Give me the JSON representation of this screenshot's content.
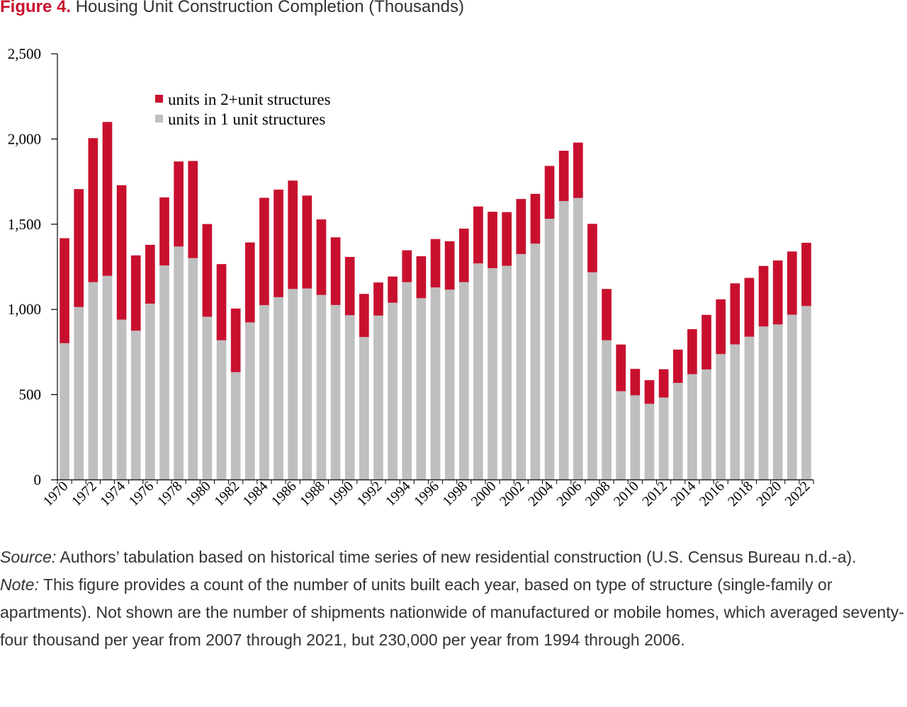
{
  "figure": {
    "label": "Figure 4.",
    "title": "Housing Unit Construction Completion (Thousands)"
  },
  "chart_data": {
    "type": "bar",
    "stacked": true,
    "categories": [
      "1970",
      "1971",
      "1972",
      "1973",
      "1974",
      "1975",
      "1976",
      "1977",
      "1978",
      "1979",
      "1980",
      "1981",
      "1982",
      "1983",
      "1984",
      "1985",
      "1986",
      "1987",
      "1988",
      "1989",
      "1990",
      "1991",
      "1992",
      "1993",
      "1994",
      "1995",
      "1996",
      "1997",
      "1998",
      "1999",
      "2000",
      "2001",
      "2002",
      "2003",
      "2004",
      "2005",
      "2006",
      "2007",
      "2008",
      "2009",
      "2010",
      "2011",
      "2012",
      "2013",
      "2014",
      "2015",
      "2016",
      "2017",
      "2018",
      "2019",
      "2020",
      "2021",
      "2022"
    ],
    "x_tick_labels": [
      "1970",
      "1972",
      "1974",
      "1976",
      "1978",
      "1980",
      "1982",
      "1984",
      "1986",
      "1988",
      "1990",
      "1992",
      "1994",
      "1996",
      "1998",
      "2000",
      "2002",
      "2004",
      "2006",
      "2008",
      "2010",
      "2012",
      "2014",
      "2016",
      "2018",
      "2020",
      "2022"
    ],
    "series": [
      {
        "name": "units in 1 unit structures",
        "color": "#bfbfbf",
        "values": [
          802,
          1014,
          1160,
          1197,
          940,
          875,
          1034,
          1258,
          1369,
          1301,
          957,
          819,
          632,
          924,
          1025,
          1072,
          1120,
          1123,
          1085,
          1026,
          966,
          838,
          964,
          1039,
          1160,
          1066,
          1129,
          1116,
          1160,
          1270,
          1242,
          1256,
          1325,
          1386,
          1532,
          1636,
          1654,
          1218,
          819,
          520,
          496,
          446,
          483,
          569,
          620,
          648,
          738,
          795,
          840,
          900,
          912,
          969,
          1020
        ]
      },
      {
        "name": "units in 2+unit structures",
        "color": "#c8102e",
        "values": [
          616,
          692,
          845,
          903,
          789,
          442,
          345,
          399,
          499,
          570,
          544,
          447,
          373,
          469,
          630,
          631,
          636,
          545,
          443,
          397,
          342,
          253,
          194,
          154,
          187,
          246,
          284,
          284,
          314,
          334,
          331,
          315,
          323,
          292,
          310,
          295,
          325,
          284,
          301,
          274,
          155,
          139,
          166,
          195,
          264,
          320,
          321,
          358,
          345,
          355,
          375,
          371,
          371
        ]
      }
    ],
    "ylim": [
      0,
      2500
    ],
    "y_ticks": [
      0,
      500,
      1000,
      1500,
      2000,
      2500
    ],
    "y_tick_labels": [
      "0",
      "500",
      "1,000",
      "1,500",
      "2,000",
      "2,500"
    ],
    "xlabel": "",
    "ylabel": "",
    "legend": {
      "position": "top-left",
      "entries": [
        "units in 2+unit structures",
        "units in 1 unit structures"
      ]
    },
    "grid": false
  },
  "notes": {
    "source_label": "Source:",
    "source_text": " Authors’ tabulation based on historical time series of new residential construction (U.S. Census Bureau n.d.-a).",
    "note_label": "Note:",
    "note_text": " This figure provides a count of the number of units built each year, based on type of structure (single-family or apartments). Not shown are the number of shipments nationwide of manufactured or mobile homes, which averaged seventy-four thousand per year from 2007 through 2021, but 230,000 per year from 1994 through 2006."
  }
}
